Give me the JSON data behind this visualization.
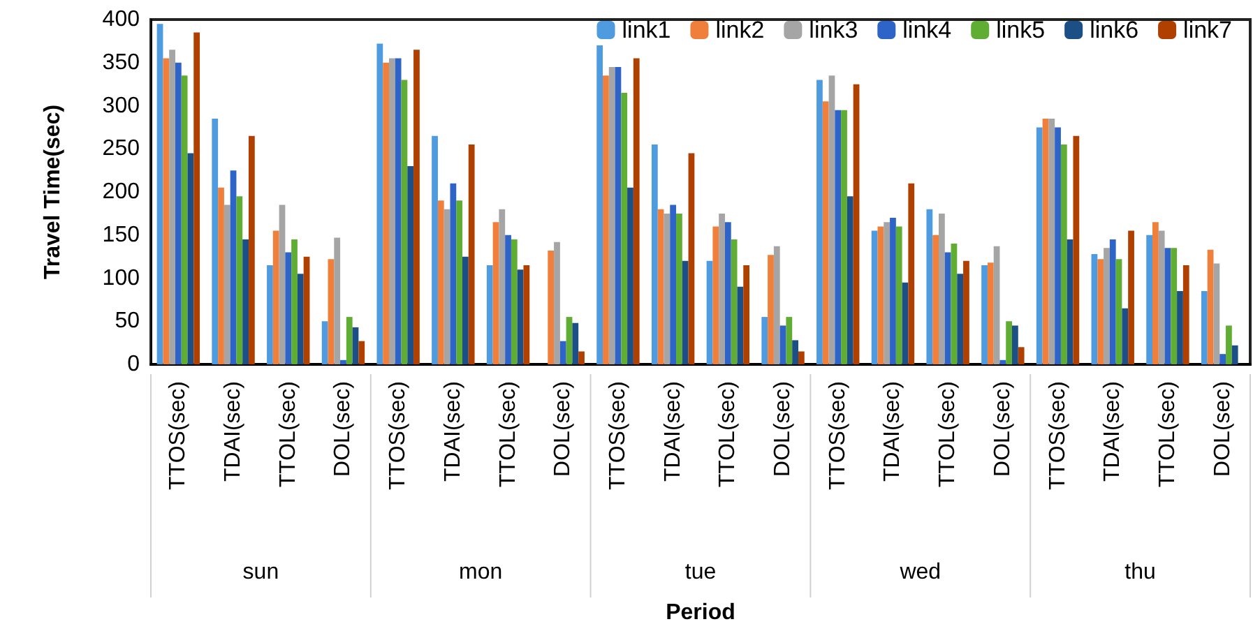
{
  "chart_data": {
    "type": "bar",
    "xlabel": "Period",
    "ylabel": "Travel Time(sec)",
    "categories": [
      "TTOS(sec)",
      "TDAI(sec)",
      "TTOL(sec)",
      "DOL(sec)",
      "TTOS(sec)",
      "TDAI(sec)",
      "TTOL(sec)",
      "DOL(sec)",
      "TTOS(sec)",
      "TDAI(sec)",
      "TTOL(sec)",
      "DOL(sec)",
      "TTOS(sec)",
      "TDAI(sec)",
      "TTOL(sec)",
      "DOL(sec)",
      "TTOS(sec)",
      "TDAI(sec)",
      "TTOL(sec)",
      "DOL(sec)"
    ],
    "annotations": [
      "sun",
      "mon",
      "tue",
      "wed",
      "thu"
    ],
    "ylim": [
      0,
      400
    ],
    "yticks": [
      0,
      50,
      100,
      150,
      200,
      250,
      300,
      350,
      400
    ],
    "grid": false,
    "legend": "top right",
    "series": [
      {
        "name": "link1",
        "color": "#4e9be0",
        "values": [
          395,
          285,
          115,
          50,
          372,
          265,
          115,
          0,
          370,
          255,
          120,
          55,
          330,
          155,
          180,
          115,
          275,
          128,
          150,
          85
        ]
      },
      {
        "name": "link2",
        "color": "#f07f3c",
        "values": [
          355,
          205,
          155,
          122,
          350,
          190,
          165,
          132,
          335,
          180,
          160,
          127,
          305,
          160,
          150,
          118,
          285,
          122,
          165,
          133
        ]
      },
      {
        "name": "link3",
        "color": "#a5a5a5",
        "values": [
          365,
          185,
          185,
          147,
          355,
          180,
          180,
          142,
          345,
          175,
          175,
          137,
          335,
          165,
          175,
          137,
          285,
          135,
          155,
          117
        ]
      },
      {
        "name": "link4",
        "color": "#2e63c8",
        "values": [
          350,
          225,
          130,
          5,
          355,
          210,
          150,
          27,
          345,
          185,
          165,
          45,
          295,
          170,
          130,
          5,
          275,
          145,
          135,
          12
        ]
      },
      {
        "name": "link5",
        "color": "#5fad32",
        "values": [
          335,
          195,
          145,
          55,
          330,
          190,
          145,
          55,
          315,
          175,
          145,
          55,
          295,
          160,
          140,
          50,
          255,
          122,
          135,
          45
        ]
      },
      {
        "name": "link6",
        "color": "#1c4f86",
        "values": [
          245,
          145,
          105,
          43,
          230,
          125,
          110,
          48,
          205,
          120,
          90,
          28,
          195,
          95,
          105,
          45,
          145,
          65,
          85,
          22
        ]
      },
      {
        "name": "link7",
        "color": "#b04000",
        "values": [
          385,
          265,
          125,
          27,
          365,
          255,
          115,
          15,
          355,
          245,
          115,
          15,
          325,
          210,
          120,
          20,
          265,
          155,
          115,
          null
        ]
      }
    ]
  }
}
